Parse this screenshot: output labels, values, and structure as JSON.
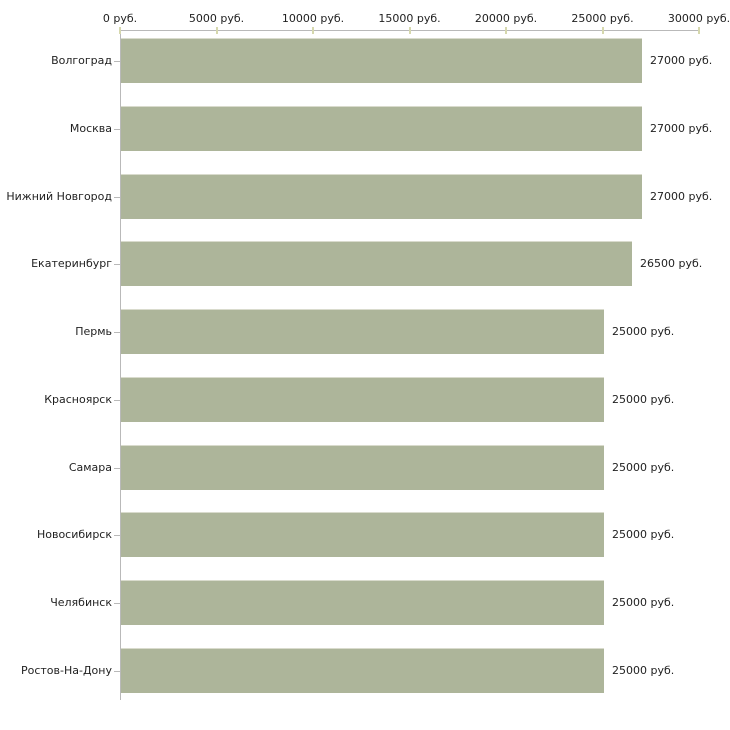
{
  "chart_data": {
    "type": "bar",
    "orientation": "horizontal",
    "title": "",
    "xlabel": "",
    "ylabel": "",
    "xlim": [
      0,
      30000
    ],
    "x_tick_values": [
      0,
      5000,
      10000,
      15000,
      20000,
      25000,
      30000
    ],
    "x_tick_labels": [
      "0 руб.",
      "5000 руб.",
      "10000 руб.",
      "15000 руб.",
      "20000 руб.",
      "25000 руб.",
      "30000 руб."
    ],
    "categories": [
      "Волгоград",
      "Москва",
      "Нижний Новгород",
      "Екатеринбург",
      "Пермь",
      "Красноярск",
      "Самара",
      "Новосибирск",
      "Челябинск",
      "Ростов-На-Дону"
    ],
    "values": [
      27000,
      27000,
      27000,
      26500,
      25000,
      25000,
      25000,
      25000,
      25000,
      25000
    ],
    "value_labels": [
      "27000 руб.",
      "27000 руб.",
      "27000 руб.",
      "26500 руб.",
      "25000 руб.",
      "25000 руб.",
      "25000 руб.",
      "25000 руб.",
      "25000 руб.",
      "25000 руб."
    ],
    "grid": false,
    "legend": "none"
  },
  "colors": {
    "bar_fill": "#adb59a",
    "axis_line": "#b9b9b9",
    "x_tick_dash": "#d6d8ad",
    "cat_tick_dash": "#b9b9b9",
    "text": "#1f1f1f",
    "background": "#ffffff"
  }
}
